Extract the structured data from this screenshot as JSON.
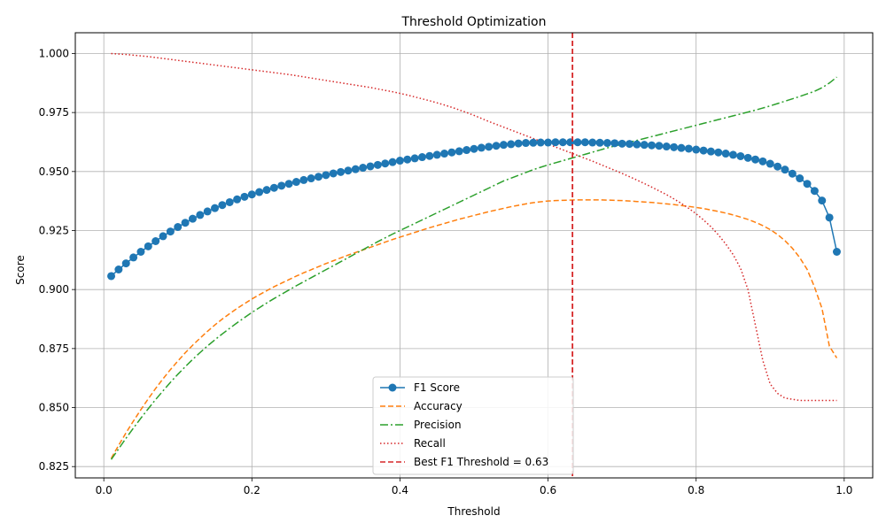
{
  "chart_data": {
    "type": "line",
    "title": "Threshold Optimization",
    "xlabel": "Threshold",
    "ylabel": "Score",
    "xlim": [
      -0.0385,
      1.0385
    ],
    "ylim": [
      0.8202,
      1.0088
    ],
    "grid": true,
    "legend_position": "lower-center",
    "xticks": [
      0.0,
      0.2,
      0.4,
      0.6,
      0.8,
      1.0
    ],
    "xtick_labels": [
      "0.0",
      "0.2",
      "0.4",
      "0.6",
      "0.8",
      "1.0"
    ],
    "yticks": [
      0.825,
      0.85,
      0.875,
      0.9,
      0.925,
      0.95,
      0.975,
      1.0
    ],
    "ytick_labels": [
      "0.825",
      "0.850",
      "0.875",
      "0.900",
      "0.925",
      "0.950",
      "0.975",
      "1.000"
    ],
    "x": [
      0.01,
      0.02,
      0.03,
      0.04,
      0.05,
      0.06,
      0.07,
      0.08,
      0.09,
      0.1,
      0.11,
      0.12,
      0.13,
      0.14,
      0.15,
      0.16,
      0.17,
      0.18,
      0.19,
      0.2,
      0.21,
      0.22,
      0.23,
      0.24,
      0.25,
      0.26,
      0.27,
      0.28,
      0.29,
      0.3,
      0.31,
      0.32,
      0.33,
      0.34,
      0.35,
      0.36,
      0.37,
      0.38,
      0.39,
      0.4,
      0.41,
      0.42,
      0.43,
      0.44,
      0.45,
      0.46,
      0.47,
      0.48,
      0.49,
      0.5,
      0.51,
      0.52,
      0.53,
      0.54,
      0.55,
      0.56,
      0.57,
      0.58,
      0.59,
      0.6,
      0.61,
      0.62,
      0.63,
      0.64,
      0.65,
      0.66,
      0.67,
      0.68,
      0.69,
      0.7,
      0.71,
      0.72,
      0.73,
      0.74,
      0.75,
      0.76,
      0.77,
      0.78,
      0.79,
      0.8,
      0.81,
      0.82,
      0.83,
      0.84,
      0.85,
      0.86,
      0.87,
      0.88,
      0.89,
      0.9,
      0.91,
      0.92,
      0.93,
      0.94,
      0.95,
      0.96,
      0.97,
      0.98,
      0.99
    ],
    "series": [
      {
        "name": "F1 Score",
        "color": "#1f77b4",
        "style": "solid-marker",
        "values": [
          0.9057,
          0.9085,
          0.9111,
          0.9136,
          0.916,
          0.9183,
          0.9205,
          0.9226,
          0.9246,
          0.9265,
          0.9283,
          0.93,
          0.9316,
          0.9331,
          0.9345,
          0.9358,
          0.937,
          0.9382,
          0.9393,
          0.9403,
          0.9413,
          0.9422,
          0.9431,
          0.944,
          0.9448,
          0.9456,
          0.9464,
          0.9471,
          0.9478,
          0.9485,
          0.9492,
          0.9498,
          0.9504,
          0.951,
          0.9516,
          0.9522,
          0.9528,
          0.9534,
          0.954,
          0.9546,
          0.9551,
          0.9556,
          0.9561,
          0.9566,
          0.9571,
          0.9576,
          0.9581,
          0.9586,
          0.9591,
          0.9596,
          0.9601,
          0.9605,
          0.9609,
          0.9613,
          0.9616,
          0.9619,
          0.9621,
          0.9622,
          0.9623,
          0.9623,
          0.9624,
          0.9624,
          0.9624,
          0.9624,
          0.9624,
          0.9623,
          0.9622,
          0.9621,
          0.962,
          0.9618,
          0.9617,
          0.9615,
          0.9613,
          0.9611,
          0.9609,
          0.9606,
          0.9603,
          0.96,
          0.9597,
          0.9593,
          0.9589,
          0.9585,
          0.9581,
          0.9576,
          0.9571,
          0.9565,
          0.9558,
          0.9551,
          0.9543,
          0.9533,
          0.9521,
          0.9508,
          0.9491,
          0.9471,
          0.9448,
          0.9418,
          0.9377,
          0.9305,
          0.916
        ]
      },
      {
        "name": "Accuracy",
        "color": "#ff7f0e",
        "style": "dashed",
        "values": [
          0.8285,
          0.834,
          0.8393,
          0.8443,
          0.8491,
          0.8537,
          0.8581,
          0.8622,
          0.8661,
          0.8697,
          0.8732,
          0.8764,
          0.8794,
          0.8823,
          0.885,
          0.8875,
          0.8898,
          0.892,
          0.894,
          0.896,
          0.8978,
          0.8995,
          0.9012,
          0.9027,
          0.9042,
          0.9057,
          0.9071,
          0.9084,
          0.9097,
          0.911,
          0.9122,
          0.9134,
          0.9146,
          0.9157,
          0.9168,
          0.9179,
          0.919,
          0.9201,
          0.9212,
          0.9222,
          0.9232,
          0.9242,
          0.9252,
          0.9262,
          0.9271,
          0.928,
          0.9289,
          0.9298,
          0.9306,
          0.9314,
          0.9322,
          0.933,
          0.9337,
          0.9344,
          0.9351,
          0.9357,
          0.9363,
          0.9368,
          0.9372,
          0.9375,
          0.9377,
          0.9378,
          0.9379,
          0.938,
          0.938,
          0.938,
          0.938,
          0.9379,
          0.9378,
          0.9377,
          0.9375,
          0.9373,
          0.9371,
          0.9369,
          0.9366,
          0.9363,
          0.936,
          0.9356,
          0.9352,
          0.9348,
          0.9343,
          0.9337,
          0.9331,
          0.9324,
          0.9316,
          0.9307,
          0.9297,
          0.9285,
          0.9271,
          0.9254,
          0.9233,
          0.9207,
          0.9175,
          0.9135,
          0.9085,
          0.901,
          0.892,
          0.876,
          0.871
        ]
      },
      {
        "name": "Precision",
        "color": "#2ca02c",
        "style": "dashdot",
        "values": [
          0.828,
          0.8325,
          0.837,
          0.8413,
          0.8455,
          0.8495,
          0.8534,
          0.8571,
          0.8607,
          0.8641,
          0.8673,
          0.8704,
          0.8733,
          0.8761,
          0.8787,
          0.8812,
          0.8836,
          0.8859,
          0.8881,
          0.8903,
          0.8923,
          0.8943,
          0.8962,
          0.898,
          0.8998,
          0.9016,
          0.9033,
          0.905,
          0.9067,
          0.9084,
          0.9101,
          0.9118,
          0.9135,
          0.9152,
          0.9169,
          0.9186,
          0.9203,
          0.9219,
          0.9235,
          0.925,
          0.9265,
          0.928,
          0.9295,
          0.931,
          0.9325,
          0.934,
          0.9355,
          0.937,
          0.9385,
          0.94,
          0.9415,
          0.943,
          0.9445,
          0.946,
          0.9472,
          0.9484,
          0.9496,
          0.9508,
          0.9518,
          0.9528,
          0.9537,
          0.9546,
          0.9555,
          0.9564,
          0.9573,
          0.9582,
          0.9591,
          0.96,
          0.9608,
          0.9616,
          0.9624,
          0.9632,
          0.964,
          0.9648,
          0.9656,
          0.9664,
          0.9672,
          0.968,
          0.9688,
          0.9696,
          0.9704,
          0.9712,
          0.972,
          0.9728,
          0.9736,
          0.9744,
          0.9752,
          0.976,
          0.9769,
          0.9778,
          0.9788,
          0.9798,
          0.9808,
          0.9818,
          0.9829,
          0.984,
          0.9855,
          0.9875,
          0.99
        ]
      },
      {
        "name": "Recall",
        "color": "#d62728",
        "style": "dotted",
        "values": [
          1.0,
          0.9998,
          0.9996,
          0.9993,
          0.999,
          0.9987,
          0.9983,
          0.9979,
          0.9975,
          0.9971,
          0.9967,
          0.9963,
          0.9959,
          0.9955,
          0.9951,
          0.9947,
          0.9943,
          0.9939,
          0.9935,
          0.9931,
          0.9927,
          0.9923,
          0.9919,
          0.9915,
          0.9911,
          0.9906,
          0.9901,
          0.9896,
          0.9891,
          0.9886,
          0.9881,
          0.9876,
          0.9871,
          0.9866,
          0.9861,
          0.9856,
          0.985,
          0.9844,
          0.9838,
          0.9831,
          0.9824,
          0.9816,
          0.9808,
          0.98,
          0.9791,
          0.9782,
          0.9772,
          0.9761,
          0.975,
          0.9738,
          0.9725,
          0.9712,
          0.97,
          0.9688,
          0.9676,
          0.9664,
          0.9652,
          0.964,
          0.9628,
          0.9616,
          0.9604,
          0.9592,
          0.958,
          0.9568,
          0.9556,
          0.9544,
          0.9531,
          0.9518,
          0.9505,
          0.9492,
          0.9478,
          0.9464,
          0.9449,
          0.9434,
          0.9418,
          0.9402,
          0.9384,
          0.9365,
          0.9344,
          0.9321,
          0.9295,
          0.9266,
          0.9232,
          0.9193,
          0.9148,
          0.909,
          0.9,
          0.885,
          0.87,
          0.86,
          0.856,
          0.854,
          0.8535,
          0.853,
          0.853,
          0.853,
          0.853,
          0.853,
          0.853
        ]
      }
    ],
    "vline": {
      "name": "Best F1 Threshold = 0.63",
      "x": 0.633,
      "color": "#d62728",
      "style": "dashed"
    }
  }
}
